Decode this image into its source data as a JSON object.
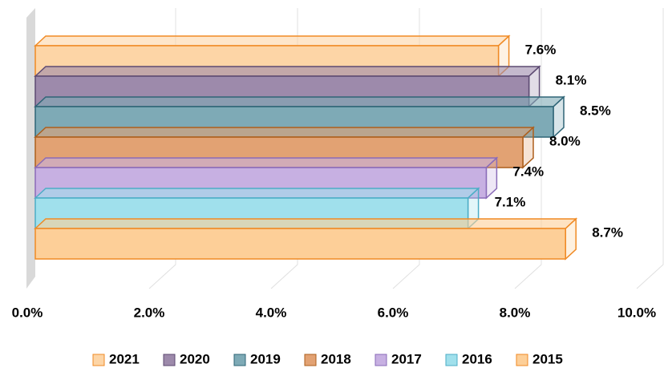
{
  "chart_data": {
    "type": "bar",
    "orientation": "horizontal",
    "series": [
      {
        "name": "2021",
        "color": "#fdd5a6",
        "edgecolor": "#f08a24",
        "values": [
          7.6
        ],
        "value_labels": [
          "7.6%"
        ]
      },
      {
        "name": "2020",
        "color": "#9d8aab",
        "edgecolor": "#5d4a72",
        "values": [
          8.1
        ],
        "value_labels": [
          "8.1%"
        ]
      },
      {
        "name": "2019",
        "color": "#7eaab6",
        "edgecolor": "#2f6577",
        "values": [
          8.5
        ],
        "value_labels": [
          "8.5%"
        ]
      },
      {
        "name": "2018",
        "color": "#e2a273",
        "edgecolor": "#ad5f1c",
        "values": [
          8.0
        ],
        "value_labels": [
          "8.0%"
        ]
      },
      {
        "name": "2017",
        "color": "#c7b0e2",
        "edgecolor": "#8a6bb8",
        "values": [
          7.4
        ],
        "value_labels": [
          "7.4%"
        ]
      },
      {
        "name": "2016",
        "color": "#a0e0ec",
        "edgecolor": "#4cadc6",
        "values": [
          7.1
        ],
        "value_labels": [
          "7.1%"
        ]
      },
      {
        "name": "2015",
        "color": "#fdcf98",
        "edgecolor": "#f08a24",
        "values": [
          8.7
        ],
        "value_labels": [
          "8.7%"
        ]
      }
    ],
    "xlim": [
      0,
      10
    ],
    "xticks": [
      {
        "value": 0,
        "label": "0.0%"
      },
      {
        "value": 2,
        "label": "2.0%"
      },
      {
        "value": 4,
        "label": "4.0%"
      },
      {
        "value": 6,
        "label": "6.0%"
      },
      {
        "value": 8,
        "label": "8.0%"
      },
      {
        "value": 10,
        "label": "10.0%"
      }
    ],
    "grid": true,
    "legend": "bottom"
  }
}
